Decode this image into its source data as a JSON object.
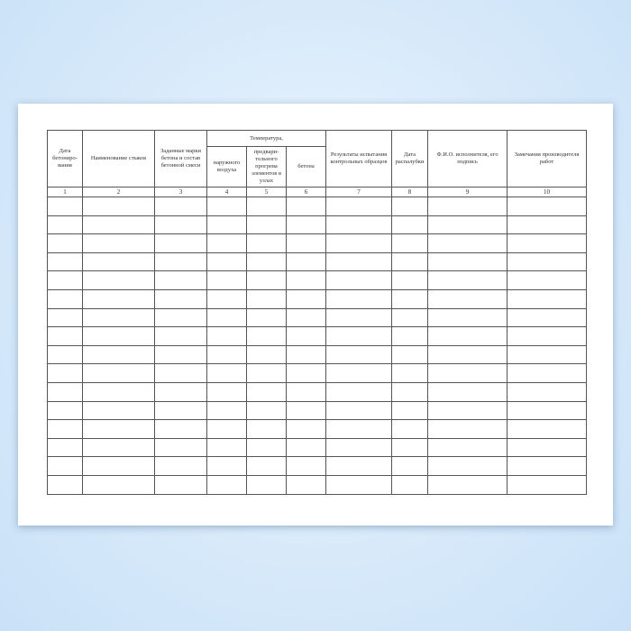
{
  "form": {
    "headers": {
      "col1": "Дата бетониро-вания",
      "col2": "Наименование стыков",
      "col3": "Заданные марки бетона и состав бетонной смеси",
      "temperature": "Температура,",
      "col4": "наружного воздуха",
      "col5": "предвари-тельного прогрева элементов в узлах",
      "col6": "бетона",
      "col7": "Результаты испытания контрольных образцов",
      "col8": "Дата распалубки",
      "col9": "Ф.И.О. исполнителя, его подпись",
      "col10": "Замечания производителя работ"
    },
    "column_numbers": [
      "1",
      "2",
      "3",
      "4",
      "5",
      "6",
      "7",
      "8",
      "9",
      "10"
    ],
    "empty_row_count": 16
  }
}
